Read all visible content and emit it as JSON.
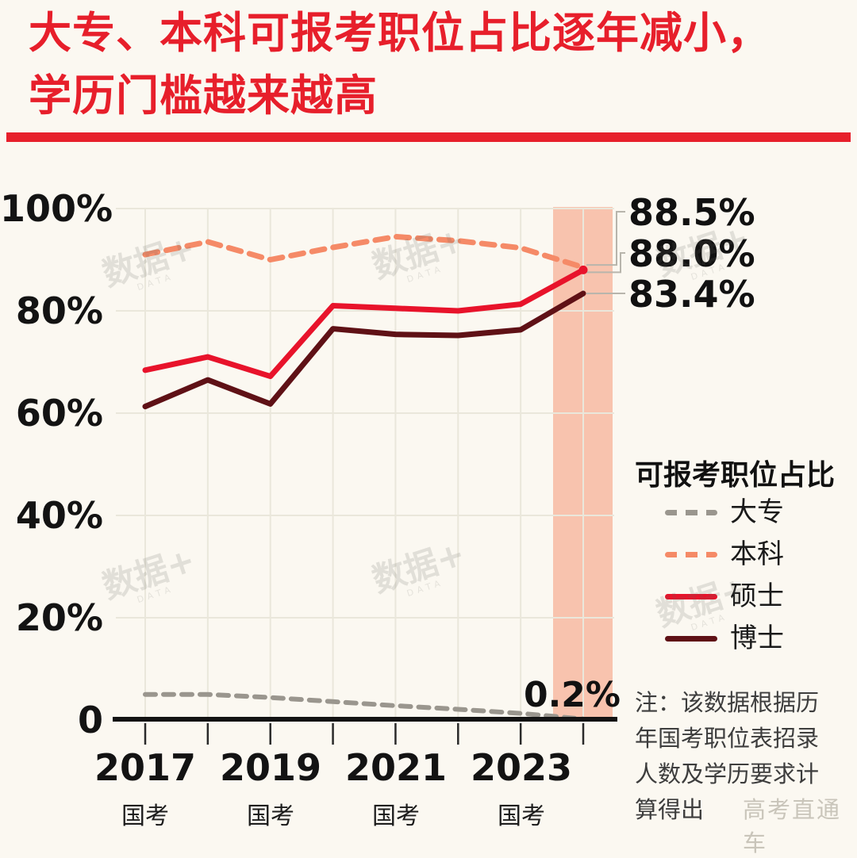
{
  "title": {
    "line1": "大专、本科可报考职位占比逐年减小，",
    "line2": "学历门槛越来越高"
  },
  "colors": {
    "background": "#fbf8f1",
    "title_red": "#e71f2b",
    "highlight_band": "#f8c3ae",
    "grid": "#eae7db",
    "axis": "#131313",
    "connector": "#b8b5ac",
    "note_text": "#3d3d3d",
    "watermark": "#c9c5ba"
  },
  "chart_data": {
    "type": "line",
    "x": [
      2017,
      2018,
      2019,
      2020,
      2021,
      2022,
      2023,
      2024
    ],
    "x_tick_labels": [
      "2017",
      "2019",
      "2021",
      "2023"
    ],
    "x_tick_sub_label": "国考",
    "y_ticks": [
      "100%",
      "80%",
      "60%",
      "40%",
      "20%",
      "0"
    ],
    "ylim": [
      0,
      100
    ],
    "grid": true,
    "highlight_x": 2024,
    "series": [
      {
        "name": "大专",
        "style": "dashed",
        "color": "#9a968e",
        "values": [
          5.0,
          5.0,
          4.4,
          3.6,
          2.8,
          2.1,
          1.3,
          0.2
        ]
      },
      {
        "name": "本科",
        "style": "dashed",
        "color": "#f58a67",
        "values": [
          91.0,
          93.5,
          90.0,
          92.4,
          94.5,
          93.7,
          92.3,
          88.5
        ]
      },
      {
        "name": "硕士",
        "style": "solid",
        "color": "#e8132b",
        "values": [
          68.4,
          71.0,
          67.2,
          81.0,
          80.5,
          80.0,
          81.3,
          88.0
        ]
      },
      {
        "name": "博士",
        "style": "solid",
        "color": "#5f1116",
        "values": [
          61.3,
          66.5,
          61.8,
          76.5,
          75.4,
          75.2,
          76.3,
          83.4
        ]
      }
    ],
    "annotations": [
      {
        "series": "本科",
        "label": "88.5%"
      },
      {
        "series": "硕士",
        "label": "88.0%"
      },
      {
        "series": "博士",
        "label": "83.4%"
      },
      {
        "series": "大专",
        "label": "0.2%"
      }
    ],
    "legend_position": "right"
  },
  "legend": {
    "title": "可报考职位占比",
    "items": [
      {
        "label": "大专"
      },
      {
        "label": "本科"
      },
      {
        "label": "硕士"
      },
      {
        "label": "博士"
      }
    ]
  },
  "note": {
    "text": "注：该数据根据历年国考职位表招录人数及学历要求计算得出"
  },
  "watermarks": {
    "logo": "数据+",
    "logo_sub": "DATA",
    "credit": "高考直通车"
  }
}
